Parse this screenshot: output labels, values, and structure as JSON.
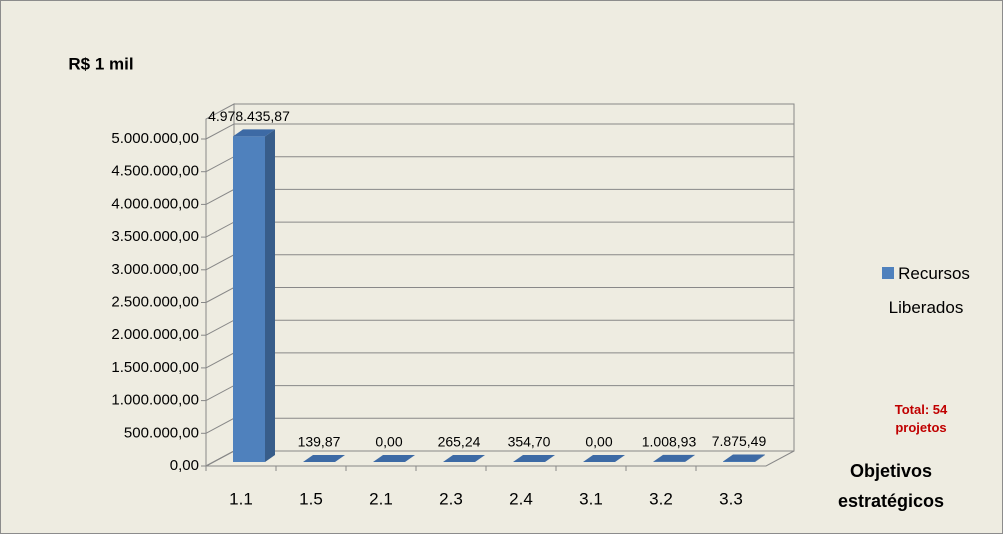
{
  "chart_data": {
    "type": "bar3d",
    "y_axis_label": "R$ 1 mil",
    "x_axis_label": "Objetivos estratégicos",
    "annotation": "Total: 54 projetos",
    "categories": [
      "1.1",
      "1.5",
      "2.1",
      "2.3",
      "2.4",
      "3.1",
      "3.2",
      "3.3"
    ],
    "series": [
      {
        "name": "Recursos Liberados",
        "color": "#4f81bd",
        "values": [
          4978435.87,
          139.87,
          0,
          265.24,
          354.7,
          0,
          1008.93,
          7875.49
        ],
        "value_labels": [
          "4.978.435,87",
          "139,87",
          "0,00",
          "265,24",
          "354,70",
          "0,00",
          "1.008,93",
          "7.875,49"
        ]
      }
    ],
    "ylim": [
      0,
      5000000
    ],
    "yticks": [
      {
        "value": 0,
        "label": "0,00"
      },
      {
        "value": 500000,
        "label": "500.000,00"
      },
      {
        "value": 1000000,
        "label": "1.000.000,00"
      },
      {
        "value": 1500000,
        "label": "1.500.000,00"
      },
      {
        "value": 2000000,
        "label": "2.000.000,00"
      },
      {
        "value": 2500000,
        "label": "2.500.000,00"
      },
      {
        "value": 3000000,
        "label": "3.000.000,00"
      },
      {
        "value": 3500000,
        "label": "3.500.000,00"
      },
      {
        "value": 4000000,
        "label": "4.000.000,00"
      },
      {
        "value": 4500000,
        "label": "4.500.000,00"
      },
      {
        "value": 5000000,
        "label": "5.000.000,00"
      }
    ],
    "grid": true,
    "legend": "right"
  }
}
